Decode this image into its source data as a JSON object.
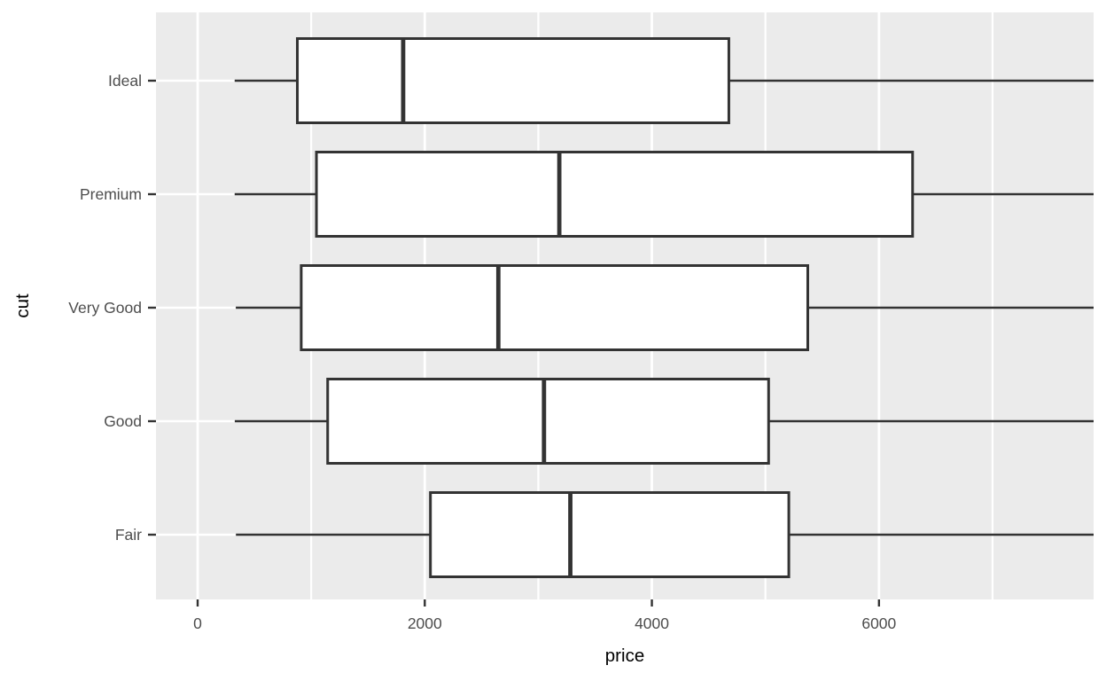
{
  "figure": {
    "panel_bg": "#EBEBEB",
    "grid_color": "#FFFFFF",
    "box_stroke": "#333333",
    "box_fill": "#FFFFFF",
    "tick_color": "#333333",
    "axis_text_color": "#4D4D4D",
    "axis_title_color": "#000000"
  },
  "chart_data": {
    "type": "boxplot",
    "orientation": "horizontal",
    "title": "",
    "xlabel": "price",
    "ylabel": "cut",
    "legend": "none",
    "grid": "major+minor vertical (white), major horizontal at category centers",
    "categories_top_to_bottom": [
      "Ideal",
      "Premium",
      "Very Good",
      "Good",
      "Fair"
    ],
    "series": [
      {
        "category": "Ideal",
        "whisker_low": 326,
        "q1": 878,
        "median": 1810,
        "q3": 4678,
        "whisker_high_clipped_at_panel_edge": true
      },
      {
        "category": "Premium",
        "whisker_low": 326,
        "q1": 1046,
        "median": 3185,
        "q3": 6296,
        "whisker_high_clipped_at_panel_edge": true
      },
      {
        "category": "Very Good",
        "whisker_low": 336,
        "q1": 912,
        "median": 2648,
        "q3": 5373,
        "whisker_high_clipped_at_panel_edge": true
      },
      {
        "category": "Good",
        "whisker_low": 327,
        "q1": 1145,
        "median": 3050,
        "q3": 5028,
        "whisker_high_clipped_at_panel_edge": true
      },
      {
        "category": "Fair",
        "whisker_low": 337,
        "q1": 2050,
        "median": 3282,
        "q3": 5206,
        "whisker_high_clipped_at_panel_edge": true
      }
    ],
    "x_ticks": [
      0,
      2000,
      4000,
      6000
    ],
    "x_tick_labels": [
      "0",
      "2000",
      "4000",
      "6000"
    ],
    "x_minor_gridlines": [
      1000,
      3000,
      5000,
      7000
    ],
    "x_axis_range": [
      -367,
      7890
    ],
    "outliers_shown": false
  }
}
